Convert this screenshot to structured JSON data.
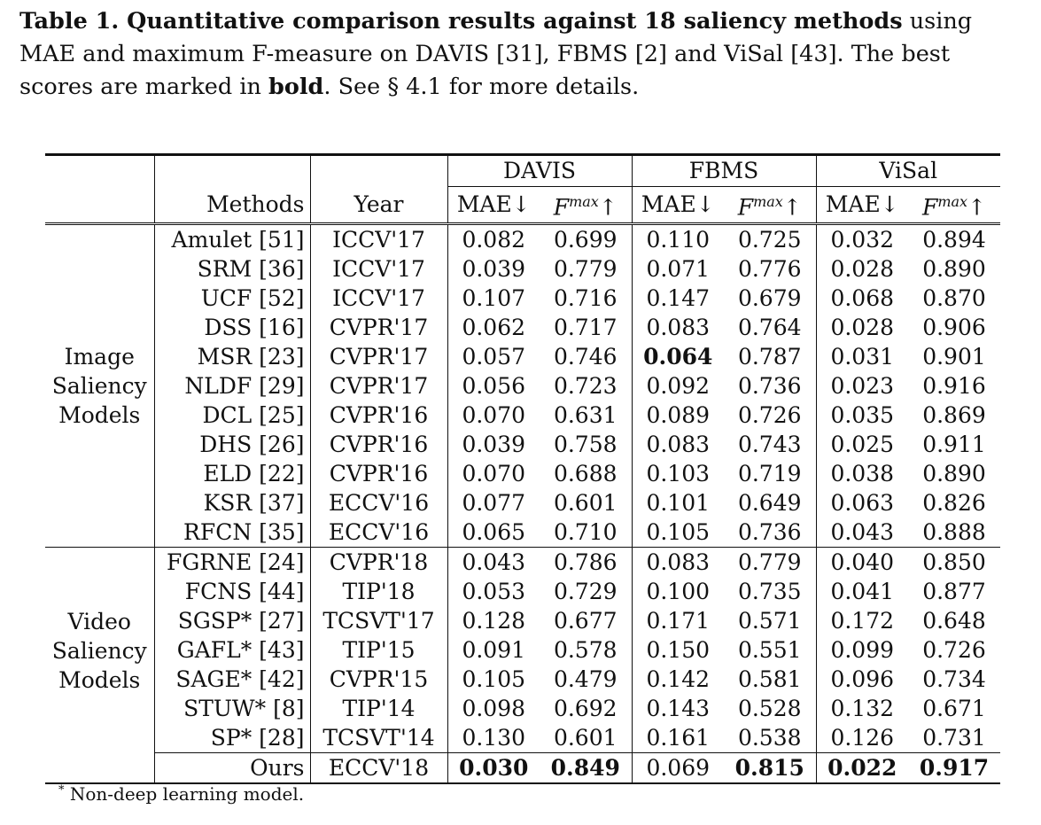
{
  "caption": {
    "label": "Table 1. Quantitative comparison results against 18 saliency methods",
    "text1": " using MAE and maximum F-measure on DAVIS [31], FBMS [2] and ViSal [43]. The best scores are marked in ",
    "bold_word": "bold",
    "text2": ". See § 4.1 for more details."
  },
  "headers": {
    "methods": "Methods",
    "year": "Year",
    "datasets": [
      "DAVIS",
      "FBMS",
      "ViSal"
    ],
    "mae": "MAE↓",
    "fmax_base": "F",
    "fmax_sup": "max",
    "fmax_arrow": "↑"
  },
  "groups": [
    {
      "label_lines": [
        "Image",
        "Saliency",
        "Models"
      ],
      "rows": [
        {
          "method": "Amulet [51]",
          "year": "ICCV'17",
          "vals": [
            "0.082",
            "0.699",
            "0.110",
            "0.725",
            "0.032",
            "0.894"
          ],
          "bold": []
        },
        {
          "method": "SRM [36]",
          "year": "ICCV'17",
          "vals": [
            "0.039",
            "0.779",
            "0.071",
            "0.776",
            "0.028",
            "0.890"
          ],
          "bold": []
        },
        {
          "method": "UCF [52]",
          "year": "ICCV'17",
          "vals": [
            "0.107",
            "0.716",
            "0.147",
            "0.679",
            "0.068",
            "0.870"
          ],
          "bold": []
        },
        {
          "method": "DSS [16]",
          "year": "CVPR'17",
          "vals": [
            "0.062",
            "0.717",
            "0.083",
            "0.764",
            "0.028",
            "0.906"
          ],
          "bold": []
        },
        {
          "method": "MSR [23]",
          "year": "CVPR'17",
          "vals": [
            "0.057",
            "0.746",
            "0.064",
            "0.787",
            "0.031",
            "0.901"
          ],
          "bold": [
            2
          ]
        },
        {
          "method": "NLDF [29]",
          "year": "CVPR'17",
          "vals": [
            "0.056",
            "0.723",
            "0.092",
            "0.736",
            "0.023",
            "0.916"
          ],
          "bold": []
        },
        {
          "method": "DCL [25]",
          "year": "CVPR'16",
          "vals": [
            "0.070",
            "0.631",
            "0.089",
            "0.726",
            "0.035",
            "0.869"
          ],
          "bold": []
        },
        {
          "method": "DHS [26]",
          "year": "CVPR'16",
          "vals": [
            "0.039",
            "0.758",
            "0.083",
            "0.743",
            "0.025",
            "0.911"
          ],
          "bold": []
        },
        {
          "method": "ELD [22]",
          "year": "CVPR'16",
          "vals": [
            "0.070",
            "0.688",
            "0.103",
            "0.719",
            "0.038",
            "0.890"
          ],
          "bold": []
        },
        {
          "method": "KSR [37]",
          "year": "ECCV'16",
          "vals": [
            "0.077",
            "0.601",
            "0.101",
            "0.649",
            "0.063",
            "0.826"
          ],
          "bold": []
        },
        {
          "method": "RFCN [35]",
          "year": "ECCV'16",
          "vals": [
            "0.065",
            "0.710",
            "0.105",
            "0.736",
            "0.043",
            "0.888"
          ],
          "bold": []
        }
      ]
    },
    {
      "label_lines": [
        "Video",
        "Saliency",
        "Models"
      ],
      "rows": [
        {
          "method": "FGRNE [24]",
          "year": "CVPR'18",
          "vals": [
            "0.043",
            "0.786",
            "0.083",
            "0.779",
            "0.040",
            "0.850"
          ],
          "bold": []
        },
        {
          "method": "FCNS [44]",
          "year": "TIP'18",
          "vals": [
            "0.053",
            "0.729",
            "0.100",
            "0.735",
            "0.041",
            "0.877"
          ],
          "bold": []
        },
        {
          "method": "SGSP* [27]",
          "year": "TCSVT'17",
          "vals": [
            "0.128",
            "0.677",
            "0.171",
            "0.571",
            "0.172",
            "0.648"
          ],
          "bold": []
        },
        {
          "method": "GAFL* [43]",
          "year": "TIP'15",
          "vals": [
            "0.091",
            "0.578",
            "0.150",
            "0.551",
            "0.099",
            "0.726"
          ],
          "bold": []
        },
        {
          "method": "SAGE* [42]",
          "year": "CVPR'15",
          "vals": [
            "0.105",
            "0.479",
            "0.142",
            "0.581",
            "0.096",
            "0.734"
          ],
          "bold": []
        },
        {
          "method": "STUW* [8]",
          "year": "TIP'14",
          "vals": [
            "0.098",
            "0.692",
            "0.143",
            "0.528",
            "0.132",
            "0.671"
          ],
          "bold": []
        },
        {
          "method": "SP* [28]",
          "year": "TCSVT'14",
          "vals": [
            "0.130",
            "0.601",
            "0.161",
            "0.538",
            "0.126",
            "0.731"
          ],
          "bold": []
        }
      ]
    }
  ],
  "ours": {
    "method": "Ours",
    "year": "ECCV'18",
    "vals": [
      "0.030",
      "0.849",
      "0.069",
      "0.815",
      "0.022",
      "0.917"
    ],
    "bold": [
      0,
      1,
      3,
      4,
      5
    ]
  },
  "footnote": {
    "mark": "*",
    "text": " Non-deep learning model."
  }
}
